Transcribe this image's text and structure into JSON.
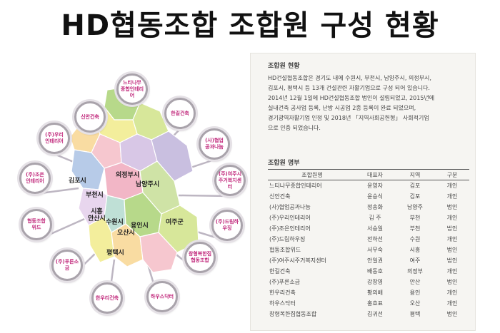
{
  "title": "HD협동조합 조합원 구성 현황",
  "diagram": {
    "bubbles": [
      "느티나무\n종합인테리어",
      "신안건축",
      "한길건축",
      "(주)우리\n인테리어",
      "(사)협업\n공과나눔",
      "(주)조은\n인테리어",
      "(주)여주시\n주거복지센터",
      "협동조합\n위드",
      "(주)드림하우징",
      "(주)푸른소금",
      "창형복한집\n협동조합",
      "한우리건축",
      "하우스닥터"
    ],
    "cities": [
      "의정부시",
      "김포시",
      "남양주시",
      "부천시",
      "시흥\n안산시",
      "수원시",
      "용인시",
      "오산시",
      "여주군",
      "평택시"
    ],
    "colors": {
      "bubble_text": "#c0267a",
      "bubble_border": "#a9a3ab",
      "region_colors": [
        "#b7d98a",
        "#d7e79a",
        "#f3ee9c",
        "#f9dca2",
        "#f6c7cf",
        "#d8c7e6",
        "#c9bfe0",
        "#b7cbe8",
        "#f2b6c6",
        "#cfe3a6",
        "#e8d6ee",
        "#bfe0d6"
      ]
    }
  },
  "document": {
    "heading": "조합원 현황",
    "paragraph": [
      "HD건설협동조합은 경기도 내에 수원시, 부천시, 남양주시, 의정부시,",
      "김포시, 평택시 등 13개 건설관련 자활기업으로 구성 되어 있습니다.",
      "2014년 12월 1일에 HD건설협동조합 법인이 설립되었고, 2015년에",
      "실내건축 공사업 등록, 난방 시공업 2종 등록이 완료 되었으며,",
      "경기광역자활기업 인정 및 2018년 「지역사회공헌형」 사회적기업",
      "으로 인증 되었습니다."
    ],
    "table_title": "조합원 명부",
    "columns": [
      "조합원명",
      "대표자",
      "지역",
      "구분"
    ],
    "rows": [
      [
        "느티나무종합인테리어",
        "윤영자",
        "김포",
        "개인"
      ],
      [
        "신안건축",
        "윤승식",
        "김포",
        "개인"
      ],
      [
        "(사)협업공과나눔",
        "정송화",
        "남양주",
        "법인"
      ],
      [
        "(주)우리인테리어",
        "김 주",
        "부천",
        "개인"
      ],
      [
        "(주)조은인테리어",
        "서승일",
        "부천",
        "법인"
      ],
      [
        "(주)드림하우징",
        "전하선",
        "수원",
        "개인"
      ],
      [
        "협동조합위드",
        "서무숙",
        "시흥",
        "법인"
      ],
      [
        "(주)여주시주거복지센터",
        "안일권",
        "여주",
        "법인"
      ],
      [
        "한길건축",
        "배동호",
        "의정부",
        "개인"
      ],
      [
        "(주)푸른소금",
        "강창영",
        "안산",
        "법인"
      ],
      [
        "한우리건축",
        "황의배",
        "용인",
        "개인"
      ],
      [
        "하우스닥터",
        "홍효표",
        "오산",
        "개인"
      ],
      [
        "창형복한집협동조합",
        "김귀선",
        "평택",
        "법인"
      ]
    ]
  }
}
